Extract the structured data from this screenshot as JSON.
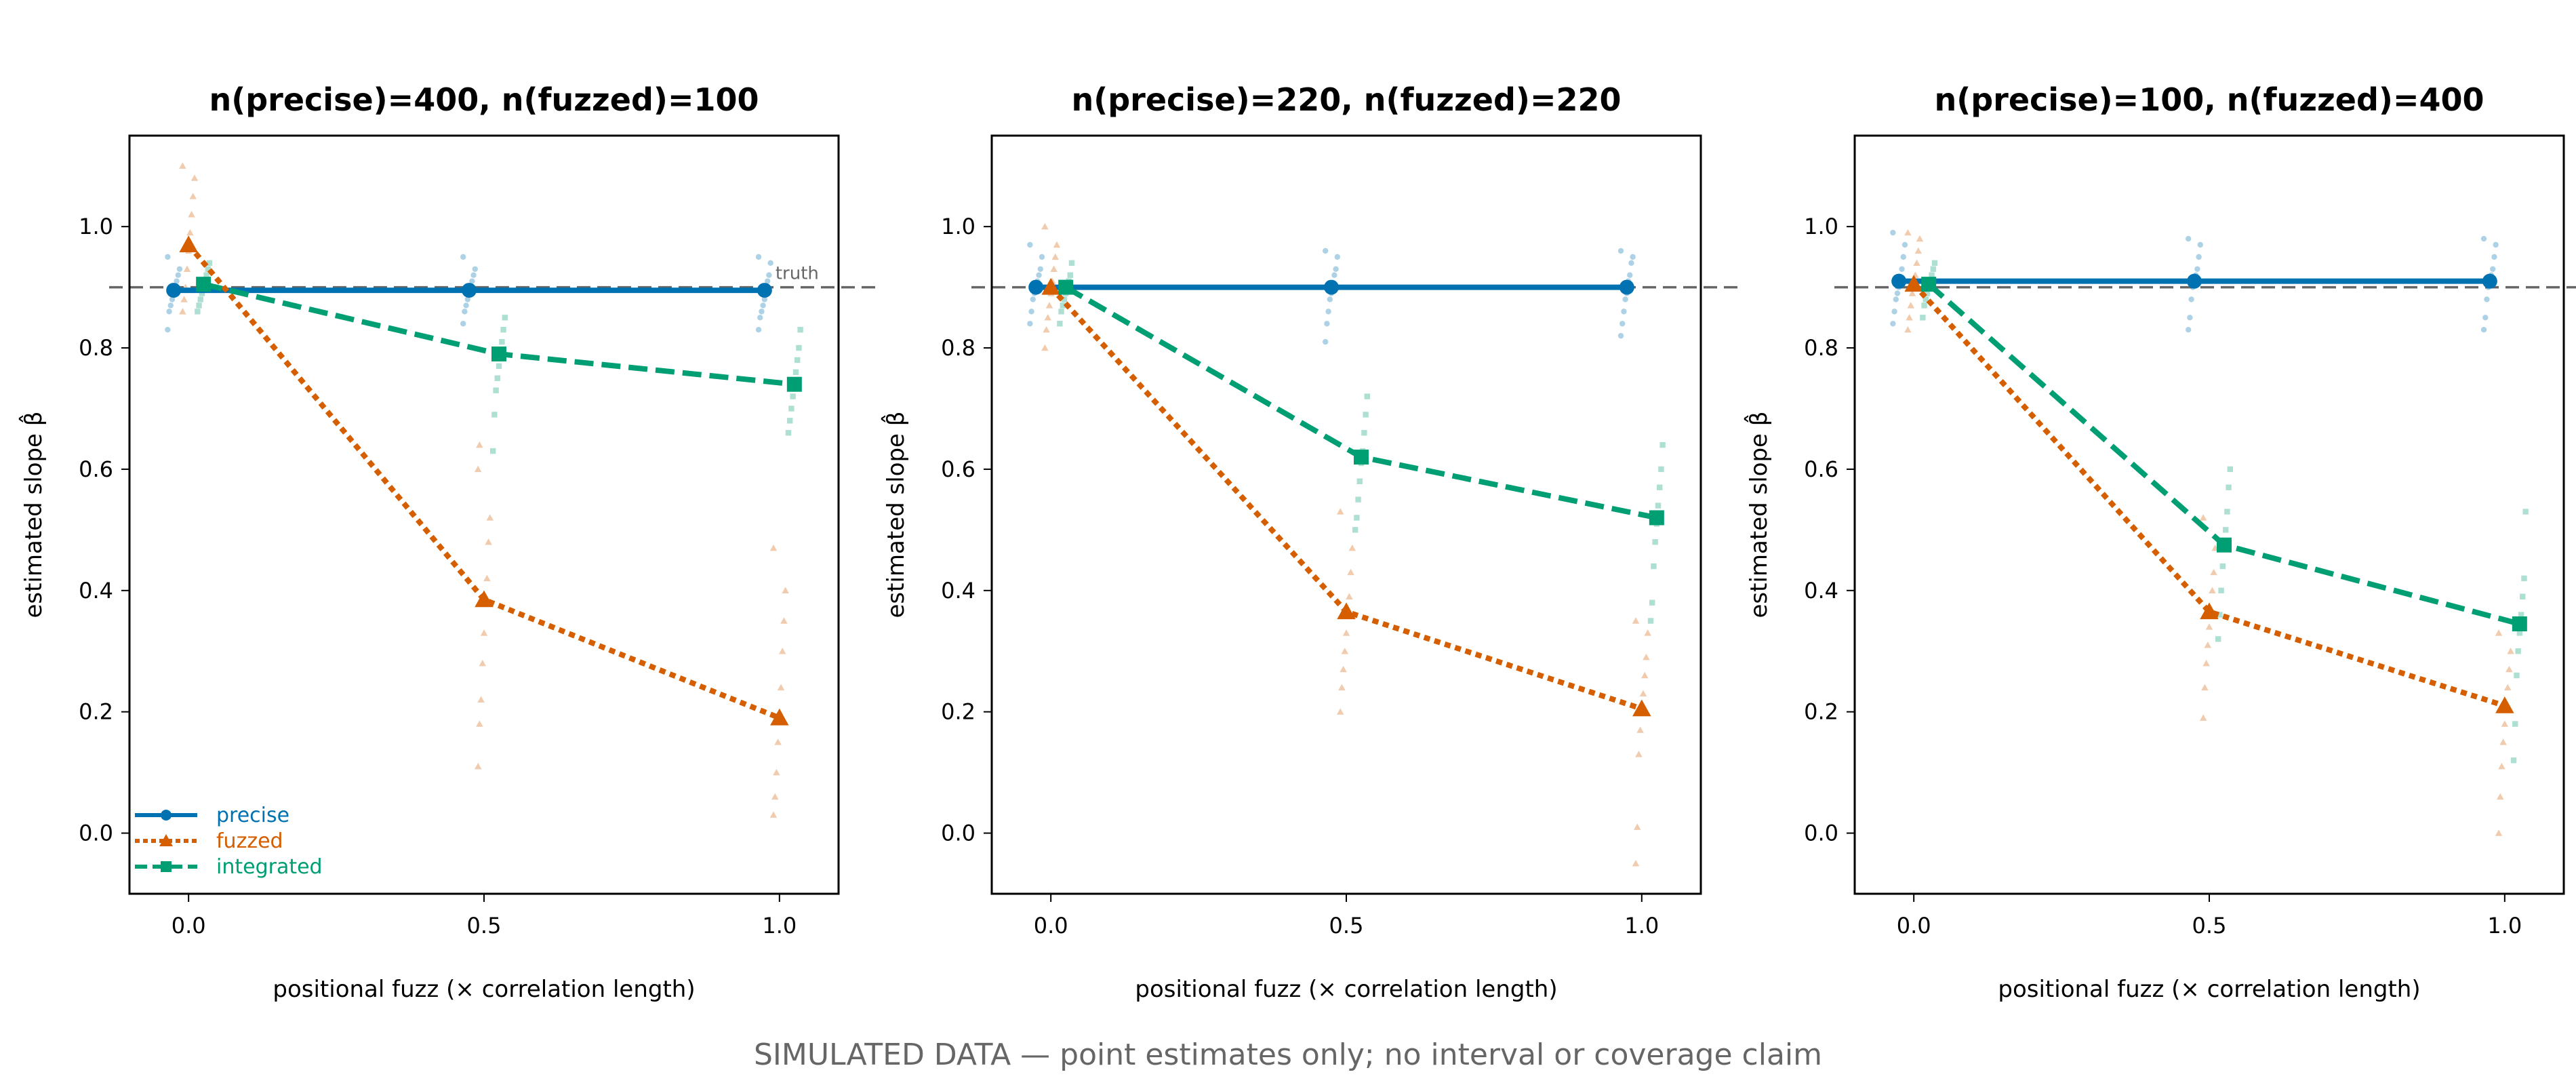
{
  "footer": "SIMULATED DATA — point estimates only; no interval or coverage claim",
  "colors": {
    "precise": "#0072B2",
    "fuzzed": "#D55E00",
    "integrated": "#009E73",
    "truth": "#666666"
  },
  "chart_data": [
    {
      "type": "line",
      "title": "n(precise)=400, n(fuzzed)=100",
      "xlabel": "positional fuzz  (× correlation length)",
      "ylabel": "estimated slope  β̂",
      "x": [
        0.0,
        0.5,
        1.0
      ],
      "x_ticks": [
        "0.0",
        "0.5",
        "1.0"
      ],
      "y_ticks": [
        "0.0",
        "0.2",
        "0.4",
        "0.6",
        "0.8",
        "1.0"
      ],
      "xlim": [
        -0.1,
        1.1
      ],
      "ylim": [
        -0.1,
        1.15
      ],
      "truth": 0.9,
      "truth_label": "truth",
      "legend": "lower-left",
      "series": [
        {
          "name": "precise",
          "marker": "circle",
          "values": [
            0.895,
            0.895,
            0.895
          ],
          "replicates": [
            [
              0.83,
              0.86,
              0.87,
              0.88,
              0.89,
              0.9,
              0.91,
              0.92,
              0.93,
              0.95
            ],
            [
              0.84,
              0.86,
              0.87,
              0.88,
              0.89,
              0.9,
              0.91,
              0.92,
              0.93,
              0.95
            ],
            [
              0.83,
              0.85,
              0.86,
              0.87,
              0.88,
              0.9,
              0.91,
              0.92,
              0.94,
              0.95
            ]
          ]
        },
        {
          "name": "fuzzed",
          "marker": "triangle",
          "values": [
            0.97,
            0.385,
            0.19
          ],
          "replicates": [
            [
              0.86,
              0.88,
              0.9,
              0.93,
              0.96,
              0.99,
              1.02,
              1.05,
              1.08,
              1.1
            ],
            [
              0.11,
              0.18,
              0.22,
              0.28,
              0.33,
              0.39,
              0.42,
              0.48,
              0.52,
              0.6,
              0.64
            ],
            [
              0.03,
              0.06,
              0.1,
              0.15,
              0.2,
              0.24,
              0.3,
              0.35,
              0.4,
              0.47
            ]
          ]
        },
        {
          "name": "integrated",
          "marker": "square",
          "values": [
            0.905,
            0.79,
            0.74
          ],
          "replicates": [
            [
              0.86,
              0.87,
              0.88,
              0.89,
              0.9,
              0.91,
              0.92,
              0.93,
              0.94
            ],
            [
              0.63,
              0.69,
              0.73,
              0.75,
              0.77,
              0.79,
              0.81,
              0.83,
              0.85
            ],
            [
              0.66,
              0.68,
              0.7,
              0.72,
              0.74,
              0.76,
              0.78,
              0.8,
              0.83
            ]
          ]
        }
      ]
    },
    {
      "type": "line",
      "title": "n(precise)=220, n(fuzzed)=220",
      "xlabel": "positional fuzz  (× correlation length)",
      "ylabel": "estimated slope  β̂",
      "x": [
        0.0,
        0.5,
        1.0
      ],
      "x_ticks": [
        "0.0",
        "0.5",
        "1.0"
      ],
      "y_ticks": [
        "0.0",
        "0.2",
        "0.4",
        "0.6",
        "0.8",
        "1.0"
      ],
      "xlim": [
        -0.1,
        1.1
      ],
      "ylim": [
        -0.1,
        1.15
      ],
      "truth": 0.9,
      "legend": "none",
      "series": [
        {
          "name": "precise",
          "marker": "circle",
          "values": [
            0.9,
            0.9,
            0.9
          ],
          "replicates": [
            [
              0.84,
              0.86,
              0.88,
              0.89,
              0.9,
              0.91,
              0.92,
              0.93,
              0.95,
              0.97
            ],
            [
              0.81,
              0.84,
              0.86,
              0.88,
              0.89,
              0.9,
              0.92,
              0.93,
              0.95,
              0.96
            ],
            [
              0.82,
              0.84,
              0.86,
              0.88,
              0.89,
              0.91,
              0.92,
              0.94,
              0.95,
              0.96
            ]
          ]
        },
        {
          "name": "fuzzed",
          "marker": "triangle",
          "values": [
            0.9,
            0.365,
            0.205
          ],
          "replicates": [
            [
              0.8,
              0.83,
              0.85,
              0.87,
              0.89,
              0.91,
              0.93,
              0.95,
              0.97,
              1.0
            ],
            [
              0.2,
              0.24,
              0.27,
              0.3,
              0.33,
              0.36,
              0.39,
              0.43,
              0.47,
              0.53
            ],
            [
              -0.05,
              0.01,
              0.13,
              0.17,
              0.2,
              0.23,
              0.26,
              0.29,
              0.33,
              0.35
            ]
          ]
        },
        {
          "name": "integrated",
          "marker": "square",
          "values": [
            0.9,
            0.62,
            0.52
          ],
          "replicates": [
            [
              0.84,
              0.86,
              0.87,
              0.88,
              0.89,
              0.9,
              0.91,
              0.92,
              0.94
            ],
            [
              0.5,
              0.52,
              0.55,
              0.58,
              0.61,
              0.63,
              0.66,
              0.69,
              0.72
            ],
            [
              0.35,
              0.38,
              0.44,
              0.48,
              0.51,
              0.54,
              0.57,
              0.6,
              0.64
            ]
          ]
        }
      ]
    },
    {
      "type": "line",
      "title": "n(precise)=100, n(fuzzed)=400",
      "xlabel": "positional fuzz  (× correlation length)",
      "ylabel": "estimated slope  β̂",
      "x": [
        0.0,
        0.5,
        1.0
      ],
      "x_ticks": [
        "0.0",
        "0.5",
        "1.0"
      ],
      "y_ticks": [
        "0.0",
        "0.2",
        "0.4",
        "0.6",
        "0.8",
        "1.0"
      ],
      "xlim": [
        -0.1,
        1.1
      ],
      "ylim": [
        -0.1,
        1.15
      ],
      "truth": 0.9,
      "legend": "none",
      "series": [
        {
          "name": "precise",
          "marker": "circle",
          "values": [
            0.91,
            0.91,
            0.91
          ],
          "replicates": [
            [
              0.84,
              0.86,
              0.88,
              0.89,
              0.9,
              0.91,
              0.93,
              0.95,
              0.97,
              0.99
            ],
            [
              0.83,
              0.85,
              0.88,
              0.9,
              0.91,
              0.92,
              0.93,
              0.95,
              0.97,
              0.98
            ],
            [
              0.83,
              0.85,
              0.88,
              0.9,
              0.91,
              0.92,
              0.93,
              0.95,
              0.97,
              0.98
            ]
          ]
        },
        {
          "name": "fuzzed",
          "marker": "triangle",
          "values": [
            0.905,
            0.365,
            0.21
          ],
          "replicates": [
            [
              0.83,
              0.85,
              0.87,
              0.89,
              0.9,
              0.92,
              0.94,
              0.96,
              0.98,
              0.99
            ],
            [
              0.19,
              0.24,
              0.28,
              0.31,
              0.34,
              0.37,
              0.4,
              0.43,
              0.47,
              0.52
            ],
            [
              0.0,
              0.06,
              0.11,
              0.15,
              0.18,
              0.21,
              0.24,
              0.27,
              0.3,
              0.33
            ]
          ]
        },
        {
          "name": "integrated",
          "marker": "square",
          "values": [
            0.905,
            0.475,
            0.345
          ],
          "replicates": [
            [
              0.85,
              0.87,
              0.88,
              0.89,
              0.9,
              0.91,
              0.92,
              0.93,
              0.94
            ],
            [
              0.32,
              0.36,
              0.4,
              0.44,
              0.47,
              0.5,
              0.53,
              0.57,
              0.6
            ],
            [
              0.12,
              0.18,
              0.26,
              0.3,
              0.33,
              0.36,
              0.39,
              0.42,
              0.53
            ]
          ]
        }
      ]
    }
  ]
}
